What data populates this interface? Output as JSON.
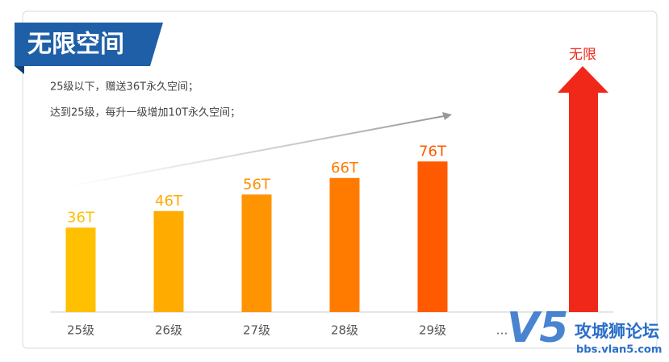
{
  "header": {
    "title": "无限空间",
    "lines": [
      "25级以下，赠送36T永久空间；",
      "达到25级，每升一级增加10T永久空间；"
    ]
  },
  "chart_data": {
    "type": "bar",
    "categories": [
      "25级",
      "26级",
      "27级",
      "28级",
      "29级"
    ],
    "values": [
      36,
      46,
      56,
      66,
      76
    ],
    "value_labels": [
      "36T",
      "46T",
      "56T",
      "66T",
      "76T"
    ],
    "colors": [
      "#ffc000",
      "#ffab00",
      "#ff9300",
      "#ff7b00",
      "#ff5a00"
    ],
    "ylim": [
      -15,
      100
    ],
    "ellipsis": "…",
    "unlimited_label": "无限",
    "unlimited_color": "#f0281a"
  },
  "watermark": {
    "logo": "V5",
    "name": "攻城狮论坛",
    "url": "bbs.vlan5.com"
  }
}
